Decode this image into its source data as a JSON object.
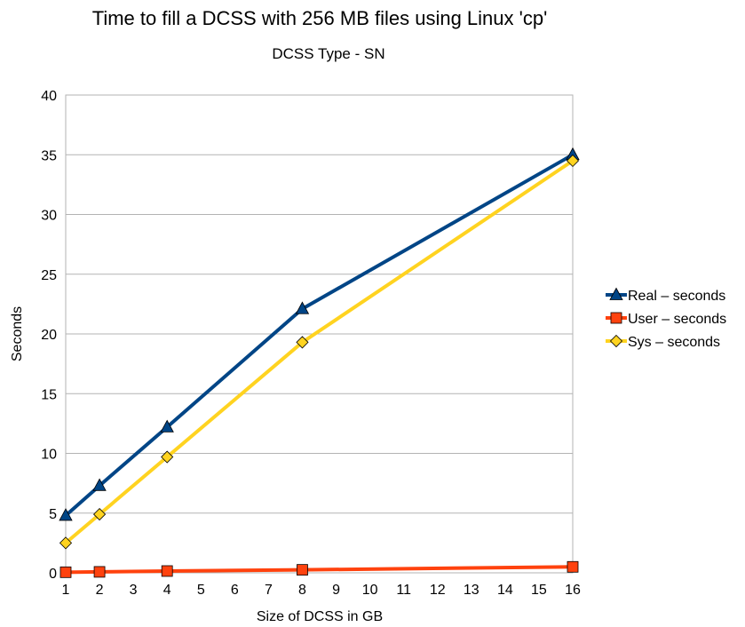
{
  "chart_data": {
    "type": "line",
    "title": "Time to fill a DCSS with 256 MB files using Linux 'cp'",
    "subtitle": "DCSS Type - SN",
    "xlabel": "Size of DCSS  in GB",
    "ylabel": "Seconds",
    "x": [
      1,
      2,
      4,
      8,
      16
    ],
    "x_ticks": [
      1,
      2,
      3,
      4,
      5,
      6,
      7,
      8,
      9,
      10,
      11,
      12,
      13,
      14,
      15,
      16
    ],
    "xlim": [
      1,
      16
    ],
    "y_ticks": [
      0,
      5,
      10,
      15,
      20,
      25,
      30,
      35,
      40
    ],
    "ylim": [
      0,
      40
    ],
    "grid": "horizontal",
    "legend_position": "right",
    "series": [
      {
        "name": "Real – seconds",
        "color": "#004586",
        "marker": "triangle",
        "values": [
          4.8,
          7.3,
          12.2,
          22.1,
          35.0
        ]
      },
      {
        "name": "User – seconds",
        "color": "#ff420e",
        "marker": "square",
        "values": [
          0.05,
          0.08,
          0.15,
          0.25,
          0.5
        ]
      },
      {
        "name": "Sys – seconds",
        "color": "#ffd320",
        "marker": "diamond",
        "values": [
          2.5,
          4.9,
          9.7,
          19.3,
          34.5
        ]
      }
    ]
  }
}
